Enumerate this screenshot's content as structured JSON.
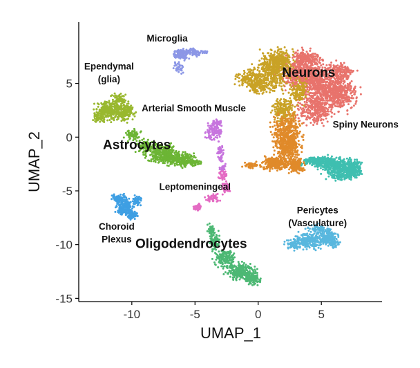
{
  "chart_data": {
    "type": "scatter",
    "title": "",
    "xlabel": "UMAP_1",
    "ylabel": "UMAP_2",
    "xlim": [
      -14.2,
      9.8
    ],
    "ylim": [
      -15.3,
      10.7
    ],
    "x_ticks": [
      -10,
      -5,
      0,
      5
    ],
    "y_ticks": [
      -15,
      -10,
      -5,
      0,
      5
    ],
    "x_tick_labels": [
      "-10",
      "-5",
      "0",
      "5"
    ],
    "y_tick_labels": [
      "-15",
      "-10",
      "-5",
      "0",
      "5"
    ],
    "grid": false,
    "legend": "none",
    "series": [
      {
        "name": "Neurons",
        "color": "#E8736C",
        "label_pos": [
          4.0,
          5.6
        ],
        "label_size": "large",
        "centers": [
          [
            3.4,
            6.0
          ],
          [
            5.0,
            5.0
          ],
          [
            6.4,
            4.0
          ],
          [
            4.6,
            2.6
          ],
          [
            3.8,
            7.4
          ],
          [
            6.6,
            6.0
          ]
        ],
        "spread": [
          [
            1.4,
            1.2
          ],
          [
            1.4,
            1.4
          ],
          [
            1.1,
            1.2
          ],
          [
            1.2,
            1.0
          ],
          [
            0.9,
            0.6
          ],
          [
            0.8,
            0.7
          ]
        ],
        "counts": [
          500,
          500,
          380,
          300,
          150,
          140
        ]
      },
      {
        "name": "",
        "color": "#C9A226",
        "centers": [
          [
            1.0,
            6.0
          ],
          [
            1.8,
            7.2
          ],
          [
            -0.8,
            5.5
          ],
          [
            2.0,
            2.5
          ],
          [
            3.2,
            4.2
          ],
          [
            0.0,
            4.8
          ]
        ],
        "spread": [
          [
            1.1,
            1.4
          ],
          [
            0.7,
            0.8
          ],
          [
            0.8,
            0.6
          ],
          [
            0.7,
            1.0
          ],
          [
            0.5,
            0.9
          ],
          [
            0.6,
            0.6
          ]
        ],
        "counts": [
          420,
          200,
          120,
          180,
          120,
          110
        ]
      },
      {
        "name": "",
        "color": "#E08A2A",
        "centers": [
          [
            2.3,
            0.3
          ],
          [
            1.4,
            -2.4
          ],
          [
            3.0,
            -2.6
          ],
          [
            2.4,
            -1.0
          ],
          [
            -0.6,
            -2.6
          ]
        ],
        "spread": [
          [
            0.9,
            1.3
          ],
          [
            0.9,
            0.5
          ],
          [
            0.6,
            0.5
          ],
          [
            0.7,
            0.8
          ],
          [
            0.5,
            0.2
          ]
        ],
        "counts": [
          420,
          260,
          160,
          200,
          50
        ]
      },
      {
        "name": "Spiny Neurons",
        "color": "#3FBFB0",
        "label_pos": [
          8.5,
          0.9
        ],
        "label_size": "medium",
        "centers": [
          [
            6.5,
            -2.8
          ],
          [
            5.3,
            -2.4
          ],
          [
            7.6,
            -2.9
          ],
          [
            4.2,
            -2.2
          ],
          [
            6.8,
            -3.6
          ]
        ],
        "spread": [
          [
            1.1,
            0.6
          ],
          [
            0.8,
            0.5
          ],
          [
            0.5,
            0.6
          ],
          [
            0.5,
            0.3
          ],
          [
            0.9,
            0.3
          ]
        ],
        "counts": [
          320,
          180,
          150,
          80,
          100
        ]
      },
      {
        "name": "Microglia",
        "color": "#8C97E6",
        "label_pos": [
          -7.2,
          8.9
        ],
        "label_size": "medium",
        "centers": [
          [
            -6.1,
            7.7
          ],
          [
            -5.1,
            7.9
          ],
          [
            -6.3,
            6.5
          ],
          [
            -4.2,
            7.9
          ]
        ],
        "spread": [
          [
            0.5,
            0.4
          ],
          [
            0.5,
            0.3
          ],
          [
            0.3,
            0.4
          ],
          [
            0.2,
            0.1
          ]
        ],
        "counts": [
          110,
          60,
          40,
          15
        ]
      },
      {
        "name": "Ependymal\n(glia)",
        "color": "#99B82F",
        "label_pos": [
          -11.8,
          6.3
        ],
        "label_size": "medium",
        "centers": [
          [
            -11.8,
            2.5
          ],
          [
            -10.6,
            2.3
          ],
          [
            -12.6,
            1.8
          ],
          [
            -11.0,
            3.5
          ]
        ],
        "spread": [
          [
            0.8,
            0.7
          ],
          [
            0.6,
            0.6
          ],
          [
            0.4,
            0.4
          ],
          [
            0.5,
            0.4
          ]
        ],
        "counts": [
          260,
          150,
          60,
          60
        ]
      },
      {
        "name": "Astrocytes",
        "color": "#6CB535",
        "label_pos": [
          -9.6,
          -1.1
        ],
        "label_size": "large",
        "centers": [
          [
            -7.5,
            -1.6
          ],
          [
            -6.1,
            -2.1
          ],
          [
            -8.9,
            -0.9
          ],
          [
            -9.9,
            0.2
          ],
          [
            -5.0,
            -2.4
          ]
        ],
        "spread": [
          [
            0.9,
            0.7
          ],
          [
            0.8,
            0.5
          ],
          [
            0.6,
            0.5
          ],
          [
            0.5,
            0.4
          ],
          [
            0.5,
            0.2
          ]
        ],
        "counts": [
          320,
          200,
          120,
          60,
          60
        ]
      },
      {
        "name": "Arterial Smooth Muscle",
        "color": "#C774DE",
        "label_pos": [
          -5.1,
          2.4
        ],
        "label_size": "medium",
        "centers": [
          [
            -3.5,
            0.5
          ],
          [
            -3.0,
            -1.5
          ],
          [
            -3.3,
            1.3
          ],
          [
            -2.8,
            -2.8
          ]
        ],
        "spread": [
          [
            0.5,
            0.6
          ],
          [
            0.2,
            0.7
          ],
          [
            0.3,
            0.3
          ],
          [
            0.2,
            0.4
          ]
        ],
        "counts": [
          100,
          45,
          40,
          25
        ]
      },
      {
        "name": "Leptomeningeal",
        "color": "#E46BC3",
        "label_pos": [
          -5.0,
          -4.9
        ],
        "label_size": "medium",
        "centers": [
          [
            -4.8,
            -6.5
          ],
          [
            -3.6,
            -5.6
          ],
          [
            -2.6,
            -4.7
          ],
          [
            -2.8,
            -3.6
          ]
        ],
        "spread": [
          [
            0.3,
            0.2
          ],
          [
            0.5,
            0.3
          ],
          [
            0.3,
            0.4
          ],
          [
            0.3,
            0.4
          ]
        ],
        "counts": [
          50,
          50,
          40,
          35
        ]
      },
      {
        "name": "Choroid\nPlexus",
        "color": "#3E9FE3",
        "label_pos": [
          -11.2,
          -8.6
        ],
        "label_size": "medium",
        "centers": [
          [
            -10.6,
            -6.5
          ],
          [
            -11.0,
            -5.7
          ],
          [
            -10.0,
            -7.2
          ],
          [
            -9.6,
            -6.0
          ]
        ],
        "spread": [
          [
            0.5,
            0.6
          ],
          [
            0.4,
            0.3
          ],
          [
            0.4,
            0.3
          ],
          [
            0.3,
            0.4
          ]
        ],
        "counts": [
          180,
          70,
          60,
          50
        ]
      },
      {
        "name": "Oligodendrocytes",
        "color": "#4DB874",
        "label_pos": [
          -5.3,
          -10.3
        ],
        "label_size": "large",
        "centers": [
          [
            -1.4,
            -12.5
          ],
          [
            -2.6,
            -11.3
          ],
          [
            -3.5,
            -9.8
          ],
          [
            -0.4,
            -13.2
          ],
          [
            -3.7,
            -8.6
          ]
        ],
        "spread": [
          [
            0.9,
            0.6
          ],
          [
            0.7,
            0.6
          ],
          [
            0.3,
            0.7
          ],
          [
            0.5,
            0.4
          ],
          [
            0.2,
            0.4
          ]
        ],
        "counts": [
          260,
          170,
          90,
          90,
          50
        ]
      },
      {
        "name": "Pericytes\n(Vasculature)",
        "color": "#58B7DE",
        "label_pos": [
          4.7,
          -7.1
        ],
        "label_size": "medium",
        "centers": [
          [
            4.0,
            -9.6
          ],
          [
            5.5,
            -9.2
          ],
          [
            2.8,
            -10.0
          ],
          [
            4.6,
            -8.5
          ],
          [
            6.0,
            -9.9
          ]
        ],
        "spread": [
          [
            0.9,
            0.6
          ],
          [
            0.6,
            0.6
          ],
          [
            0.5,
            0.4
          ],
          [
            0.6,
            0.3
          ],
          [
            0.4,
            0.4
          ]
        ],
        "counts": [
          220,
          140,
          80,
          60,
          50
        ]
      }
    ]
  }
}
